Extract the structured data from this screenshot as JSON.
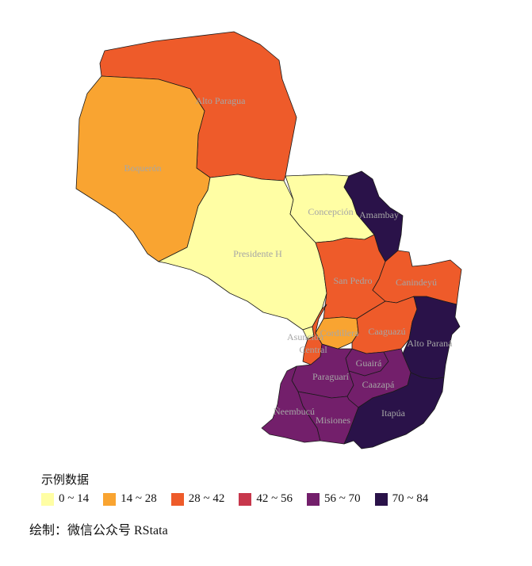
{
  "colors": {
    "c0_14": "#FFFEA4",
    "c14_28": "#F9A431",
    "c28_42": "#EE5B2A",
    "c42_56": "#C7374C",
    "c56_70": "#731F6B",
    "c70_84": "#2A1249",
    "label": "#a6a6a6"
  },
  "regions": [
    {
      "name": "Alto Paragua",
      "color": "#EE5B2A"
    },
    {
      "name": "Boquerón",
      "color": "#F9A431"
    },
    {
      "name": "Presidente H",
      "color": "#FFFEA4"
    },
    {
      "name": "Concepción",
      "color": "#FFFEA4"
    },
    {
      "name": "Amambay",
      "color": "#2A1249"
    },
    {
      "name": "San Pedro",
      "color": "#EE5B2A"
    },
    {
      "name": "Canindeyú",
      "color": "#EE5B2A"
    },
    {
      "name": "Cordillera",
      "color": "#F9A431"
    },
    {
      "name": "Caaguazú",
      "color": "#EE5B2A"
    },
    {
      "name": "Alto Paraná",
      "color": "#2A1249"
    },
    {
      "name": "Asunción",
      "color": "#FFFEA4"
    },
    {
      "name": "Central",
      "color": "#EE5B2A"
    },
    {
      "name": "Guairá",
      "color": "#731F6B"
    },
    {
      "name": "Paraguarí",
      "color": "#731F6B"
    },
    {
      "name": "Caazapá",
      "color": "#731F6B"
    },
    {
      "name": "Ñeembucú",
      "color": "#731F6B"
    },
    {
      "name": "Misiones",
      "color": "#731F6B"
    },
    {
      "name": "Itapúa",
      "color": "#2A1249"
    }
  ],
  "legend": {
    "title": "示例数据",
    "items": [
      {
        "label": "0 ~ 14",
        "color": "#FFFEA4"
      },
      {
        "label": "14 ~ 28",
        "color": "#F9A431"
      },
      {
        "label": "28 ~ 42",
        "color": "#EE5B2A"
      },
      {
        "label": "42 ~ 56",
        "color": "#C7374C"
      },
      {
        "label": "56 ~ 70",
        "color": "#731F6B"
      },
      {
        "label": "70 ~ 84",
        "color": "#2A1249"
      }
    ]
  },
  "caption": "绘制：微信公众号 RStata"
}
